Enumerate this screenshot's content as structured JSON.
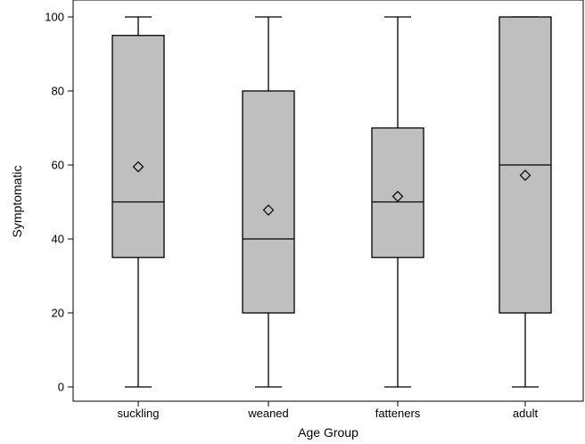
{
  "chart_data": {
    "type": "box",
    "title": "",
    "xlabel": "Age Group",
    "ylabel": "Symptomatic",
    "ylim": [
      0,
      100
    ],
    "yticks": [
      0,
      20,
      40,
      60,
      80,
      100
    ],
    "categories": [
      "suckling",
      "weaned",
      "fatteners",
      "adult"
    ],
    "boxes": [
      {
        "category": "suckling",
        "min": 0,
        "q1": 35,
        "median": 50,
        "q3": 95,
        "max": 100,
        "mean": 59.5
      },
      {
        "category": "weaned",
        "min": 0,
        "q1": 20,
        "median": 40,
        "q3": 80,
        "max": 100,
        "mean": 47.8
      },
      {
        "category": "fatteners",
        "min": 0,
        "q1": 35,
        "median": 50,
        "q3": 70,
        "max": 100,
        "mean": 51.5
      },
      {
        "category": "adult",
        "min": 0,
        "q1": 20,
        "median": 60,
        "q3": 100,
        "max": 100,
        "mean": 57.2
      }
    ],
    "grid": false,
    "colors": {
      "box_fill": "#bfbfbf",
      "stroke": "#000000"
    }
  }
}
